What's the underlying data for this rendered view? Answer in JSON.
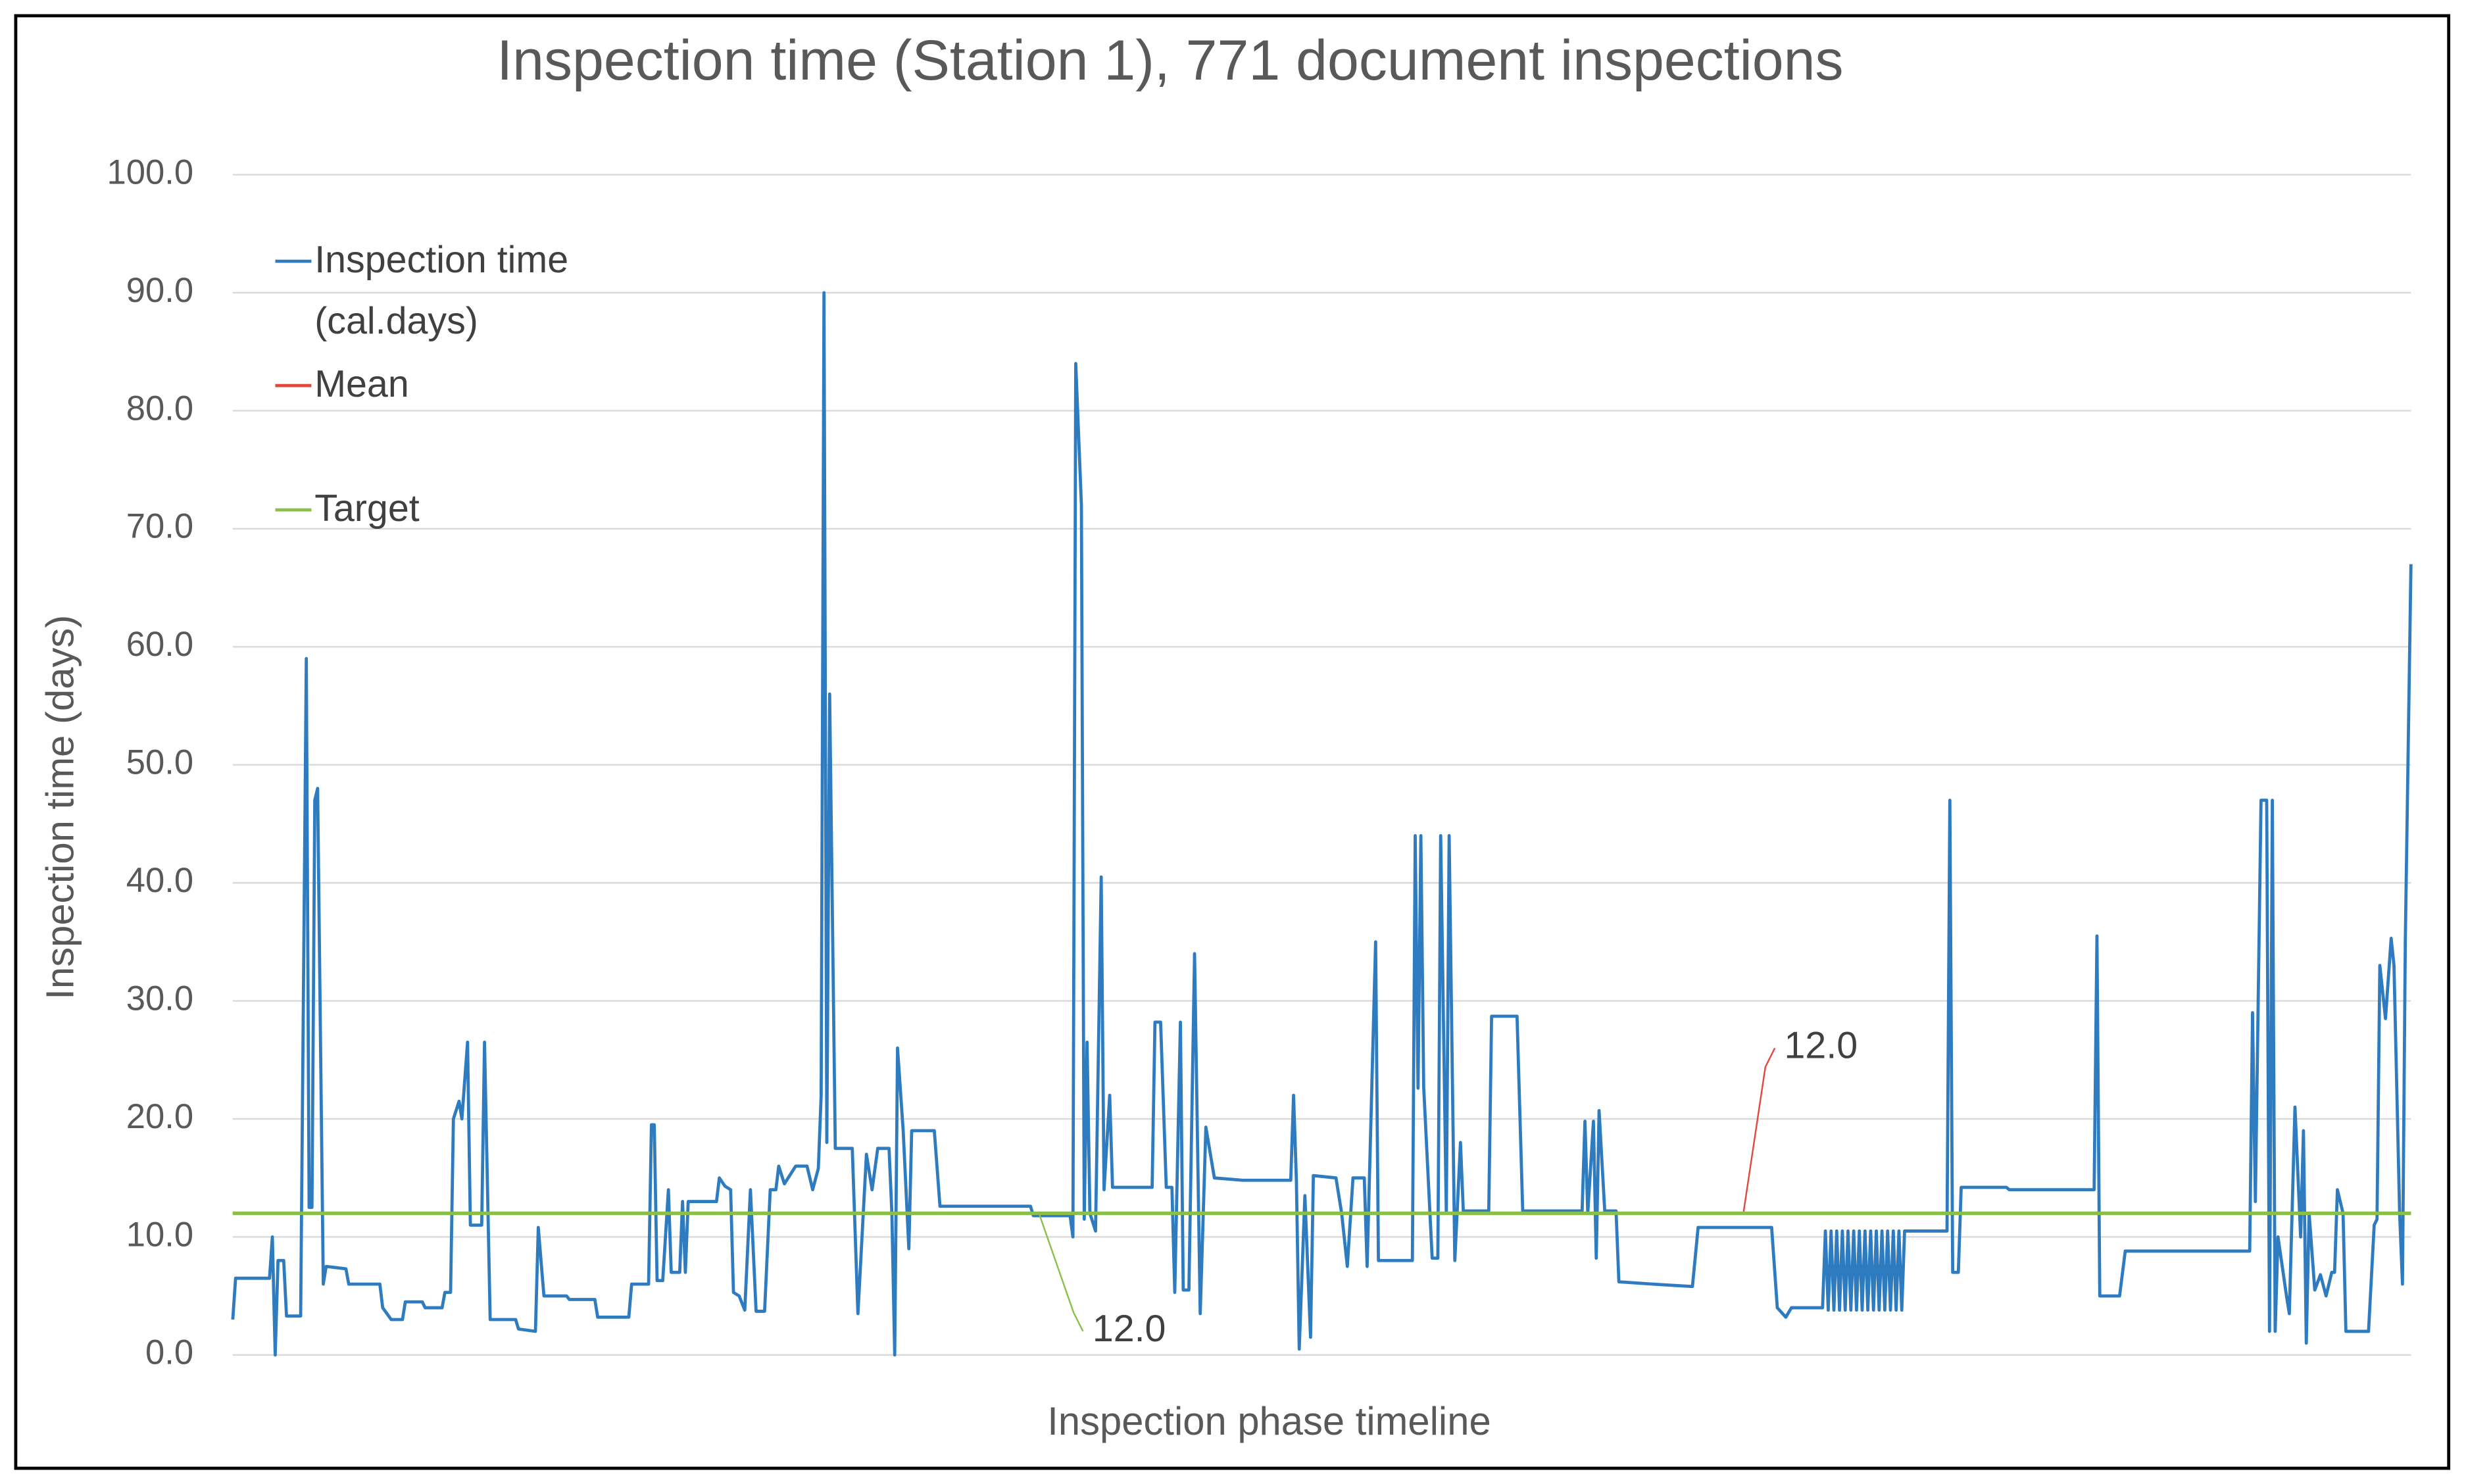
{
  "chart_data": {
    "type": "line",
    "title": "Inspection time (Station 1), 771 document inspections",
    "x_label": "Inspection phase timeline",
    "y_label": "Inspection time (days)",
    "xlim": [
      1,
      771
    ],
    "ylim": [
      0,
      100
    ],
    "yticks": [
      {
        "value": 0,
        "label": "0.0"
      },
      {
        "value": 10,
        "label": "10.0"
      },
      {
        "value": 20,
        "label": "20.0"
      },
      {
        "value": 30,
        "label": "30.0"
      },
      {
        "value": 40,
        "label": "40.0"
      },
      {
        "value": 50,
        "label": "50.0"
      },
      {
        "value": 60,
        "label": "60.0"
      },
      {
        "value": 70,
        "label": "70.0"
      },
      {
        "value": 80,
        "label": "80.0"
      },
      {
        "value": 90,
        "label": "90.0"
      },
      {
        "value": 100,
        "label": "100.0"
      }
    ],
    "grid": true,
    "legend": "upper left",
    "series": [
      {
        "name": "Inspection time (cal.days)",
        "color": "#2e7bbf",
        "x": [
          1,
          2,
          14,
          15,
          16,
          17,
          19,
          20,
          25,
          27,
          28,
          29,
          30,
          31,
          33,
          34,
          41,
          42,
          53,
          54,
          57,
          61,
          62,
          68,
          69,
          75,
          76,
          78,
          79,
          81,
          82,
          84,
          85,
          89,
          90,
          92,
          101,
          102,
          108,
          109,
          111,
          119,
          120,
          129,
          130,
          141,
          142,
          148,
          149,
          150,
          151,
          153,
          155,
          156,
          159,
          160,
          161,
          162,
          172,
          173,
          175,
          177,
          178,
          180,
          182,
          184,
          186,
          189,
          191,
          193,
          194,
          196,
          200,
          204,
          206,
          208,
          209,
          210,
          211,
          212,
          214,
          220,
          222,
          225,
          227,
          229,
          233,
          234,
          235,
          236,
          238,
          240,
          241,
          249,
          251,
          283,
          284,
          297,
          298,
          299,
          301,
          302,
          303,
          304,
          306,
          308,
          309,
          311,
          312,
          326,
          327,
          329,
          331,
          333,
          334,
          336,
          337,
          339,
          341,
          343,
          345,
          348,
          358,
          375,
          376,
          377,
          378,
          380,
          382,
          383,
          391,
          393,
          395,
          397,
          401,
          402,
          405,
          406,
          418,
          419,
          420,
          421,
          422,
          425,
          427,
          428,
          430,
          431,
          433,
          435,
          436,
          445,
          446,
          455,
          457,
          478,
          479,
          480,
          482,
          483,
          484,
          486,
          490,
          491,
          503,
          517,
          519,
          545,
          547,
          550,
          552,
          563,
          564,
          565,
          566,
          567,
          568,
          569,
          570,
          571,
          572,
          573,
          574,
          575,
          576,
          577,
          578,
          579,
          580,
          581,
          582,
          583,
          584,
          585,
          586,
          587,
          588,
          589,
          590,
          591,
          592,
          593,
          607,
          608,
          609,
          611,
          612,
          628,
          629,
          659,
          660,
          661,
          668,
          670,
          714,
          715,
          716,
          718,
          720,
          721,
          722,
          723,
          724,
          727,
          728,
          730,
          732,
          733,
          734,
          735,
          737,
          739,
          741,
          743,
          744,
          745,
          747,
          748,
          756,
          758,
          759,
          760,
          762,
          764,
          765,
          767,
          768,
          769,
          771
        ],
        "values": [
          3,
          6.5,
          6.5,
          10,
          0,
          8,
          8,
          3.3,
          3.3,
          59,
          12.5,
          12.5,
          47,
          48,
          6,
          7.5,
          7.3,
          6,
          6,
          4,
          3,
          3,
          4.5,
          4.5,
          4,
          4,
          5.3,
          5.3,
          20,
          21.5,
          20,
          26.5,
          11,
          11,
          26.5,
          3,
          3,
          2.2,
          2,
          10.8,
          5,
          5,
          4.7,
          4.7,
          3.2,
          3.2,
          6,
          6,
          19.5,
          19.5,
          6.3,
          6.3,
          14,
          7,
          7,
          13,
          7,
          13,
          13,
          15,
          14.3,
          14,
          5.3,
          5,
          3.8,
          14,
          3.7,
          3.7,
          14,
          14,
          16,
          14.5,
          16,
          16,
          14,
          15.8,
          22,
          90,
          18,
          56,
          17.5,
          17.5,
          3.5,
          17,
          14,
          17.5,
          17.5,
          12,
          0,
          26,
          19,
          9,
          19,
          19,
          12.6,
          12.6,
          11.8,
          11.8,
          10,
          84,
          72,
          11.5,
          26.5,
          12,
          10.5,
          40.5,
          14,
          22,
          14.2,
          14.2,
          28.2,
          28.2,
          14.2,
          14.2,
          5.3,
          28.2,
          5.5,
          5.5,
          34,
          3.5,
          19.3,
          15,
          14.8,
          14.8,
          22,
          14.8,
          0.5,
          13.5,
          1.5,
          15.2,
          15,
          12,
          7.5,
          15,
          15,
          7.5,
          35,
          8,
          8,
          44,
          22.6,
          44,
          22.7,
          8.2,
          8.2,
          44,
          12,
          44,
          8,
          18,
          12.2,
          12.2,
          28.7,
          28.7,
          12.2,
          12.2,
          19.8,
          12,
          19.8,
          8.2,
          20.7,
          12.2,
          12.2,
          6.2,
          6,
          5.8,
          10.8,
          10.8,
          4,
          3.2,
          4,
          4,
          10.5,
          3.8,
          10.5,
          3.8,
          10.5,
          3.8,
          10.5,
          3.8,
          10.5,
          3.8,
          10.5,
          3.8,
          10.5,
          3.8,
          10.5,
          3.8,
          10.5,
          3.8,
          10.5,
          3.8,
          10.5,
          3.8,
          10.5,
          3.8,
          10.5,
          3.8,
          10.5,
          3.8,
          10.5,
          10.5,
          10.5,
          47,
          7,
          7,
          14.2,
          14.2,
          14,
          14,
          35.5,
          5,
          5,
          8.8,
          8.8,
          29,
          13,
          47,
          47,
          2,
          47,
          2,
          10,
          5,
          3.5,
          21,
          10,
          19,
          1,
          12,
          5.5,
          6.8,
          5,
          7,
          7,
          14,
          12,
          2,
          2,
          11,
          11.5,
          33,
          28.5,
          35.3,
          33,
          12,
          6,
          35,
          67
        ]
      },
      {
        "name": "Mean",
        "color": "#e2463c",
        "x": [
          1,
          535,
          771
        ],
        "values": [
          12,
          12,
          12
        ],
        "value_labels": [
          null,
          "12.0",
          null
        ]
      },
      {
        "name": "Target",
        "color": "#8cbf4a",
        "x": [
          1,
          286,
          771
        ],
        "values": [
          12,
          12,
          12
        ],
        "value_labels": [
          null,
          "12.0",
          null
        ]
      }
    ]
  }
}
